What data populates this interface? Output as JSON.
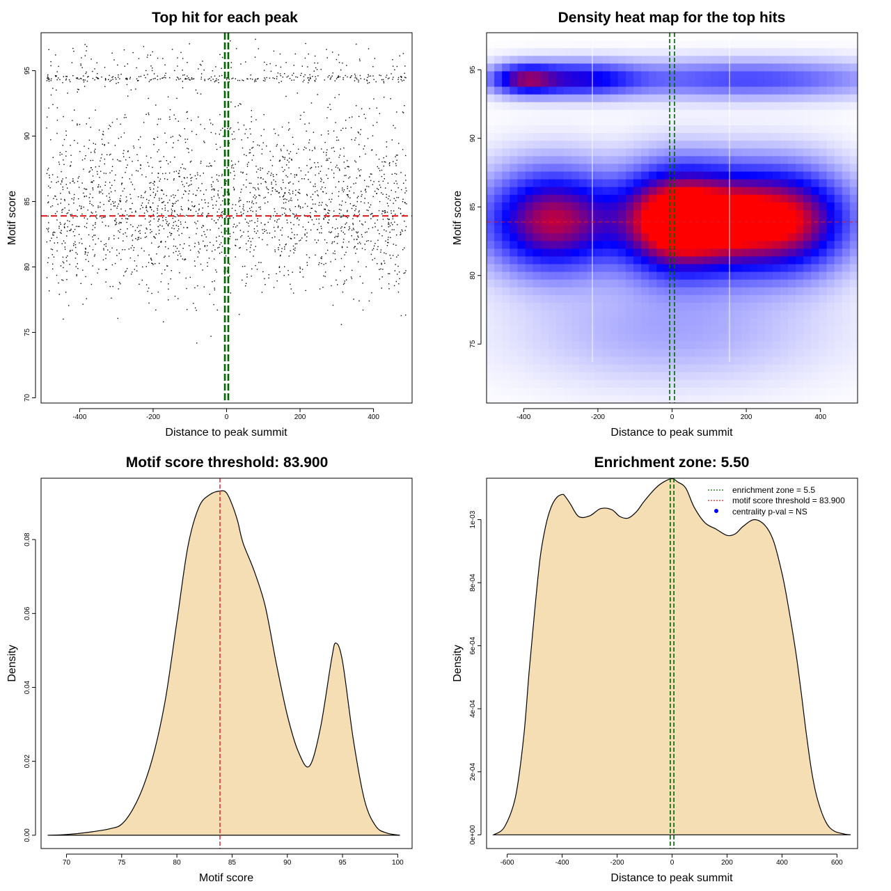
{
  "colors": {
    "threshold_line": "#e31a1c",
    "zone_line": "#006400",
    "density_fill": "#f5deb3",
    "heat_low": "#ffffff",
    "heat_mid": "#0000ff",
    "heat_high": "#ff0000",
    "legend_point": "#0000ff"
  },
  "chart_data": [
    {
      "id": "scatter",
      "type": "scatter",
      "title": "Top hit for each peak",
      "xlabel": "Distance to peak summit",
      "ylabel": "Motif score",
      "xlim": [
        -505,
        505
      ],
      "ylim": [
        69.6,
        97.9
      ],
      "xticks": [
        -400,
        -200,
        0,
        200,
        400
      ],
      "xtick_labels": [
        "-400",
        "-200",
        "0",
        "200",
        "400"
      ],
      "yticks": [
        70,
        75,
        80,
        85,
        90,
        95
      ],
      "ytick_labels": [
        "70",
        "75",
        "80",
        "85",
        "90",
        "95"
      ],
      "threshold": 83.9,
      "zone": [
        -2.75,
        2.75
      ],
      "point_count": 2600,
      "score_distribution": [
        {
          "mean": 83.5,
          "sd": 2.8,
          "weight": 0.6
        },
        {
          "mean": 88.0,
          "sd": 3.0,
          "weight": 0.25
        },
        {
          "mean": 94.4,
          "sd": 0.15,
          "weight": 0.09
        },
        {
          "mean": 95.5,
          "sd": 0.8,
          "weight": 0.06
        }
      ],
      "position_range": [
        -490,
        490
      ]
    },
    {
      "id": "heatmap",
      "type": "heatmap",
      "title": "Density heat map for the top hits",
      "xlabel": "Distance to peak summit",
      "ylabel": "Motif score",
      "xlim": [
        -500,
        500
      ],
      "ylim": [
        70.7,
        97.7
      ],
      "xticks": [
        -400,
        -200,
        0,
        200,
        400
      ],
      "xtick_labels": [
        "-400",
        "-200",
        "0",
        "200",
        "400"
      ],
      "yticks": [
        75,
        80,
        85,
        90,
        95
      ],
      "ytick_labels": [
        "75",
        "80",
        "85",
        "90",
        "95"
      ],
      "threshold": 83.9,
      "zone": [
        -2.75,
        2.75
      ],
      "hotspots": [
        {
          "x": 0,
          "y": 84,
          "sx": 95,
          "sy": 2.4,
          "w": 1.0
        },
        {
          "x": -320,
          "y": 84,
          "sx": 120,
          "sy": 2.4,
          "w": 0.78
        },
        {
          "x": 320,
          "y": 84,
          "sx": 110,
          "sy": 2.4,
          "w": 0.74
        },
        {
          "x": 150,
          "y": 84,
          "sx": 110,
          "sy": 2.4,
          "w": 0.7
        },
        {
          "x": -400,
          "y": 94.3,
          "sx": 60,
          "sy": 0.7,
          "w": 0.55
        },
        {
          "x": -250,
          "y": 94.3,
          "sx": 110,
          "sy": 0.8,
          "w": 0.45
        },
        {
          "x": 200,
          "y": 94.3,
          "sx": 250,
          "sy": 0.9,
          "w": 0.3
        },
        {
          "x": 0,
          "y": 76,
          "sx": 260,
          "sy": 2.5,
          "w": 0.12
        }
      ]
    },
    {
      "id": "score_density",
      "type": "area",
      "title": "Motif score threshold: 83.900",
      "xlabel": "Motif score",
      "ylabel": "Density",
      "xlim": [
        67.7,
        101.3
      ],
      "ylim": [
        -0.0036,
        0.0966
      ],
      "xticks": [
        70,
        75,
        80,
        85,
        90,
        95,
        100
      ],
      "xtick_labels": [
        "70",
        "75",
        "80",
        "85",
        "90",
        "95",
        "100"
      ],
      "yticks": [
        0,
        0.02,
        0.04,
        0.06,
        0.08
      ],
      "ytick_labels": [
        "0.00",
        "0.02",
        "0.04",
        "0.06",
        "0.08"
      ],
      "threshold": 83.9,
      "x": [
        68.3,
        70,
        72,
        74,
        75,
        76,
        77,
        78,
        79,
        80,
        81,
        82,
        83,
        84,
        84.5,
        85,
        85.5,
        86,
        87,
        88,
        89,
        90,
        91,
        92,
        93,
        94,
        94.4,
        95,
        96,
        97,
        98,
        99,
        100.2
      ],
      "y": [
        0,
        0.0002,
        0.0008,
        0.0018,
        0.003,
        0.007,
        0.0135,
        0.0232,
        0.0375,
        0.0578,
        0.0782,
        0.0888,
        0.0922,
        0.0932,
        0.0926,
        0.0895,
        0.085,
        0.079,
        0.0715,
        0.062,
        0.0465,
        0.0325,
        0.0226,
        0.0187,
        0.029,
        0.0475,
        0.052,
        0.047,
        0.0255,
        0.0094,
        0.0025,
        0.0006,
        0
      ]
    },
    {
      "id": "position_density",
      "type": "area",
      "title": "Enrichment zone: 5.50",
      "xlabel": "Distance to peak summit",
      "ylabel": "Density",
      "xlim": [
        -675,
        675
      ],
      "ylim": [
        -4.35e-05,
        0.0011315
      ],
      "xticks": [
        -600,
        -400,
        -200,
        0,
        200,
        400,
        600
      ],
      "xtick_labels": [
        "-600",
        "-400",
        "-200",
        "0",
        "200",
        "400",
        "600"
      ],
      "yticks": [
        0,
        0.0002,
        0.0004,
        0.0006,
        0.0008,
        0.001
      ],
      "ytick_labels": [
        "0e+00",
        "2e-04",
        "4e-04",
        "6e-04",
        "8e-04",
        "1e-03"
      ],
      "zone": [
        -2.75,
        2.75
      ],
      "x": [
        -650,
        -610,
        -570,
        -540,
        -520,
        -500,
        -480,
        -460,
        -440,
        -420,
        -400,
        -390,
        -370,
        -340,
        -300,
        -260,
        -220,
        -190,
        -160,
        -130,
        -100,
        -60,
        -30,
        0,
        20,
        50,
        80,
        120,
        160,
        200,
        230,
        260,
        300,
        340,
        370,
        400,
        420,
        450,
        470,
        490,
        510,
        530,
        560,
        590,
        630,
        650
      ],
      "y": [
        0,
        2.5e-05,
        0.00012,
        0.00031,
        0.00052,
        0.00071,
        0.00088,
        0.00098,
        0.00104,
        0.00107,
        0.00108,
        0.001075,
        0.00105,
        0.00101,
        0.001012,
        0.001035,
        0.001032,
        0.00101,
        0.001005,
        0.001025,
        0.00106,
        0.0011,
        0.00112,
        0.00113,
        0.00112,
        0.0011,
        0.00104,
        0.00099,
        0.00097,
        0.00095,
        0.000955,
        0.00098,
        0.001,
        0.00098,
        0.00093,
        0.00083,
        0.00074,
        0.00058,
        0.00045,
        0.00031,
        0.00019,
        0.00011,
        4e-05,
        1.2e-05,
        2e-06,
        0
      ],
      "legend": [
        {
          "type": "line",
          "color": "#006400",
          "label": "enrichment zone = 5.5"
        },
        {
          "type": "line",
          "color": "#e31a1c",
          "label": "motif score threshold = 83.900"
        },
        {
          "type": "point",
          "color": "#0000ff",
          "label": "centrality p-val = NS"
        }
      ]
    }
  ]
}
